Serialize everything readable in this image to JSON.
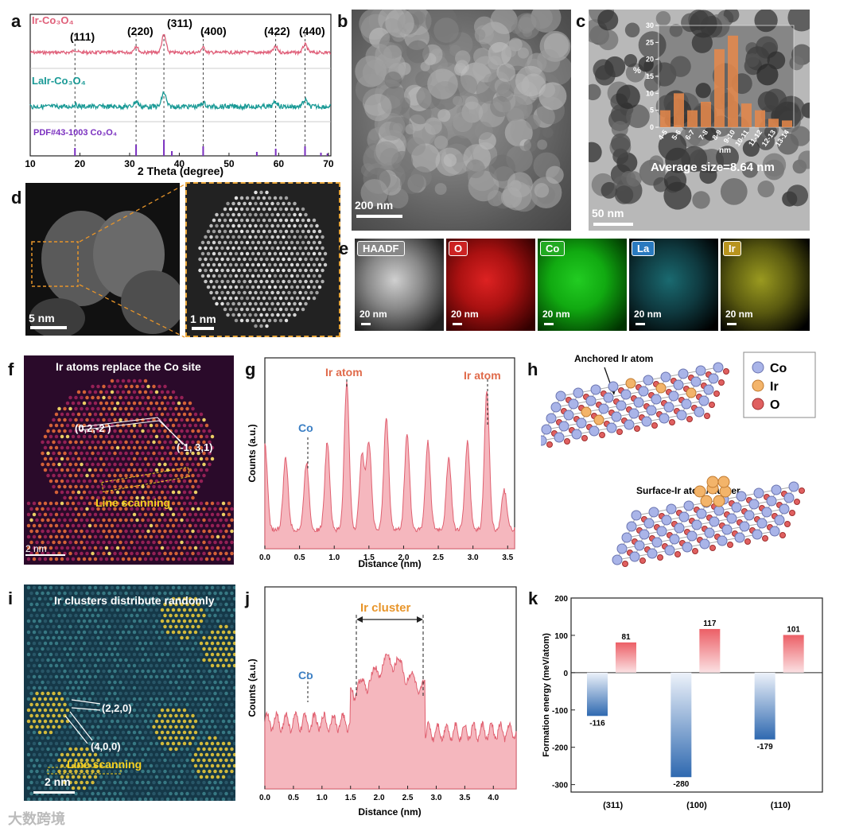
{
  "panel_letters": {
    "a": "a",
    "b": "b",
    "c": "c",
    "d": "d",
    "e": "e",
    "f": "f",
    "g": "g",
    "h": "h",
    "i": "i",
    "j": "j",
    "k": "k"
  },
  "colors": {
    "ir_co3o4": "#e0607a",
    "lair_co3o4": "#1a9a96",
    "pdf": "#7a2fbf",
    "co": "#3b7fc4",
    "ir": "#e06a4a",
    "cluster": "#e8952a",
    "bar_pos": "#ec6f6f",
    "bar_neg": "#3c76b8"
  },
  "a": {
    "series_labels": {
      "top": "Ir-Co₃O₄",
      "mid": "LaIr-Co₃O₄",
      "ref": "PDF#43-1003 Co₃O₄"
    },
    "peaks": [
      "(111)",
      "(220)",
      "(311)",
      "(400)",
      "(422)",
      "(440)"
    ],
    "xticks": [
      "10",
      "20",
      "30",
      "40",
      "50",
      "60",
      "70"
    ],
    "xlabel": "2 Theta (degree)"
  },
  "b": {
    "scale": "200 nm"
  },
  "c": {
    "scale": "50 nm",
    "avg": "Average size=8.64 nm",
    "ylabel": "%",
    "xlabel": "nm",
    "yticks": [
      "0",
      "5",
      "10",
      "15",
      "20",
      "25",
      "30"
    ],
    "bins": [
      "4-5",
      "5-6",
      "6-7",
      "7-8",
      "8-9",
      "9-10",
      "10-11",
      "11-12",
      "12-13",
      "13-14"
    ]
  },
  "d": {
    "scale1": "5 nm",
    "scale2": "1 nm"
  },
  "e": {
    "labels": [
      "HAADF",
      "O",
      "Co",
      "La",
      "Ir"
    ],
    "scale": "20 nm"
  },
  "f": {
    "title": "Ir atoms replace the Co site",
    "plane1": "(0,2,-2 )",
    "plane2": "(-1, 3,1)",
    "scan": "Line scanning",
    "scale": "2 nm"
  },
  "g": {
    "co": "Co",
    "ir1": "Ir atom",
    "ir2": "Ir atom",
    "xlabel": "Distance (nm)",
    "ylabel": "Counts (a.u.)",
    "xticks": [
      "0.0",
      "0.5",
      "1.0",
      "1.5",
      "2.0",
      "2.5",
      "3.0",
      "3.5"
    ]
  },
  "h": {
    "anchored": "Anchored Ir atom",
    "surface": "Surface-Ir atom/cluster",
    "legend": [
      "Co",
      "Ir",
      "O"
    ]
  },
  "i": {
    "title": "Ir clusters distribute randomly",
    "plane1": "(2,2,0)",
    "plane2": "(4,0,0)",
    "scan": "Line scanning",
    "scale": "2 nm"
  },
  "j": {
    "co": "Co",
    "cluster": "Ir cluster",
    "xlabel": "Distance (nm)",
    "ylabel": "Counts (a.u.)",
    "xticks": [
      "0.0",
      "0.5",
      "1.0",
      "1.5",
      "2.0",
      "2.5",
      "3.0",
      "3.5",
      "4.0"
    ]
  },
  "chart_data": [
    {
      "type": "bar",
      "panel": "k",
      "categories": [
        "(311)",
        "(100)",
        "(110)"
      ],
      "series": [
        {
          "name": "positive",
          "values": [
            81,
            117,
            101
          ]
        },
        {
          "name": "negative",
          "values": [
            -116,
            -280,
            -179
          ]
        }
      ],
      "ylabel": "Formation energy (meV/atom)",
      "ylim": [
        -320,
        200
      ],
      "yticks": [
        "200",
        "100",
        "0",
        "-100",
        "-200",
        "-300"
      ]
    },
    {
      "type": "bar",
      "panel": "c-inset",
      "categories": [
        "4-5",
        "5-6",
        "6-7",
        "7-8",
        "8-9",
        "9-10",
        "10-11",
        "11-12",
        "12-13",
        "13-14"
      ],
      "values": [
        5,
        10,
        5,
        7.5,
        23,
        27,
        7,
        5,
        2.5,
        2
      ],
      "ylabel": "%",
      "xlabel": "nm",
      "ylim": [
        0,
        30
      ]
    }
  ],
  "watermark": "大数跨境"
}
